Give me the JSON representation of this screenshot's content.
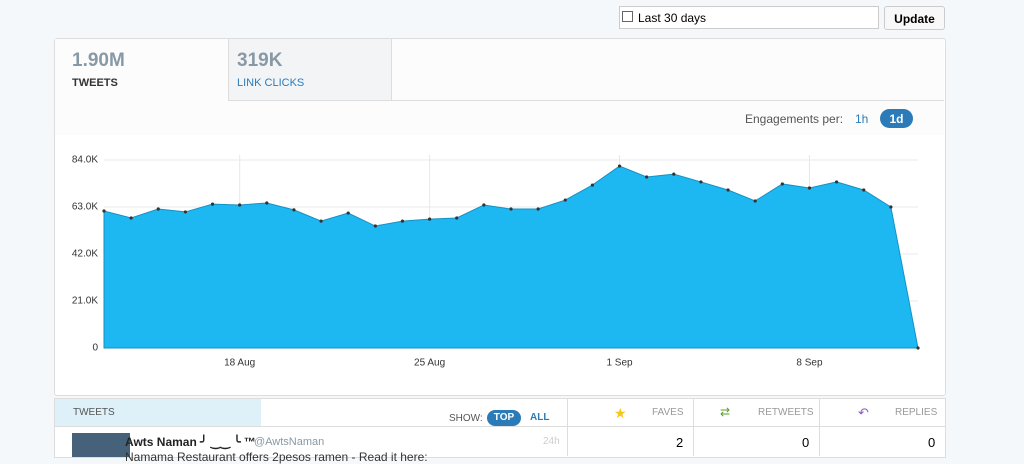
{
  "toolbar": {
    "range": "Last 30 days",
    "button": "Update"
  },
  "tabs": [
    {
      "value": "1.90M",
      "label": "TWEETS"
    },
    {
      "value": "319K",
      "label": "LINK CLICKS"
    }
  ],
  "engagements": {
    "label": "Engagements per:",
    "options": [
      "1h",
      "1d"
    ]
  },
  "chart_data": {
    "type": "area",
    "color": "#1db8f2",
    "categories": [
      null,
      null,
      null,
      null,
      null,
      "18 Aug",
      null,
      null,
      null,
      null,
      null,
      null,
      "25 Aug",
      null,
      null,
      null,
      null,
      null,
      null,
      "1 Sep",
      null,
      null,
      null,
      null,
      null,
      null,
      "8 Sep",
      null,
      null,
      null,
      null
    ],
    "values": [
      61200,
      58100,
      62100,
      60800,
      64300,
      63900,
      64800,
      61700,
      56700,
      60300,
      54500,
      56700,
      57600,
      58100,
      63900,
      62100,
      62100,
      66100,
      72800,
      81300,
      76400,
      77700,
      74200,
      70600,
      65700,
      73300,
      71500,
      74200,
      70600,
      63000,
      0
    ],
    "ylim": [
      0,
      84000
    ],
    "yticks": [
      0,
      {
        "value": 21000,
        "label": "21.0K"
      },
      {
        "value": 42000,
        "label": "42.0K"
      },
      {
        "value": 63000,
        "label": "63.0K"
      },
      {
        "value": 84000,
        "label": "84.0K"
      }
    ],
    "grid": true
  },
  "table": {
    "header": {
      "title": "TWEETS",
      "show": "SHOW:",
      "top": "TOP",
      "all": "ALL",
      "faves": "FAVES",
      "retweets": "RETWEETS",
      "replies": "REPLIES"
    },
    "rows": [
      {
        "name": "Awts Naman ╯ ‿‿ ╰ ™",
        "handle": "@AwtsNaman",
        "time": "24h",
        "text": "Namama Restaurant offers 2pesos ramen - Read it here:",
        "faves": "2",
        "retweets": "0",
        "replies": "0"
      }
    ]
  }
}
